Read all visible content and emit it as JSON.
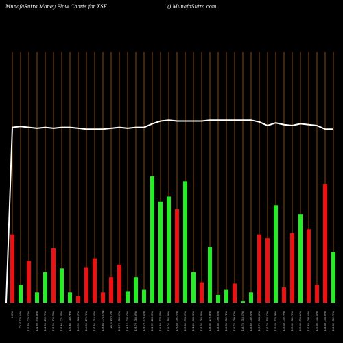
{
  "header": {
    "left_text": "MunafaSutra  Money Flow  Charts for XSF",
    "right_text": "() MunafaSutra.com"
  },
  "colors": {
    "background": "#000000",
    "gridline": "#b35a00",
    "up_bar": "#22ee22",
    "down_bar": "#ee1111",
    "price_line": "#ffffff"
  },
  "chart_data": {
    "type": "bar",
    "title": "MunafaSutra  Money Flow  Charts for XSF",
    "xlabel": "",
    "ylabel": "",
    "ylim": [
      0,
      100
    ],
    "grid": true,
    "series": [
      {
        "values": [
          54,
          14,
          33,
          8,
          24,
          43,
          27,
          8,
          5,
          28,
          35,
          8,
          20,
          30,
          9,
          20,
          10,
          100,
          80,
          84,
          74,
          96,
          24,
          16,
          44,
          6,
          10,
          15,
          1,
          8,
          54,
          51,
          77,
          12,
          55,
          70,
          58,
          14,
          94,
          40
        ],
        "directions": [
          "down",
          "up",
          "down",
          "up",
          "up",
          "down",
          "up",
          "up",
          "down",
          "down",
          "down",
          "down",
          "down",
          "down",
          "up",
          "up",
          "up",
          "up",
          "up",
          "up",
          "down",
          "up",
          "up",
          "down",
          "up",
          "up",
          "up",
          "down",
          "up",
          "up",
          "down",
          "down",
          "up",
          "down",
          "down",
          "up",
          "down",
          "down",
          "down",
          "up"
        ]
      },
      {
        "values": [
          138,
          139,
          138,
          137,
          138,
          137,
          138,
          138,
          137,
          136,
          136,
          136,
          137,
          138,
          137,
          138,
          138,
          142,
          145,
          146,
          145,
          145,
          145,
          145,
          146,
          146,
          146,
          146,
          146,
          146,
          144,
          140,
          143,
          141,
          140,
          142,
          141,
          140,
          136,
          136
        ]
      }
    ],
    "x_labels": [
      "0.00%",
      "122.40 573.54%",
      "133.90 1770.43%",
      "131.90 1936.48%",
      "131.90 1152.75%",
      "131.55 1122.75%",
      "129.64 1271.95%",
      "129.64 1780.76%",
      "124.50 1764.95%",
      "124.50 1175.76%",
      "129.88 1714.80%",
      "124.84 1774.07%",
      "124.57 1570.3%",
      "126.70 1785.05%",
      "128.17 1730.27%",
      "128.79 1788.69%",
      "129.79 1575.45%",
      "132.32 1180.98%",
      "134.80 1170.70%",
      "134.28 1185.98%",
      "129.40 1791.74%",
      "133.08 1790.85%",
      "122.08 1706.90%",
      "135.04 1286.38%",
      "138.08 1179.38%",
      "134.04 1793.84%",
      "134.38 1582.72%",
      "134.74 1790.97%",
      "134.76 1716.57%",
      "134.80 1702.81%",
      "133.79 1700.68%",
      "133.79 1152.47%",
      "133.40 1178.76%",
      "133.40 1752.79%",
      "133.40 1761.70%",
      "133.40 1736.44%",
      "133.63 1790.24%",
      "133.06 1741.80%",
      "138.00 1755.09%",
      "134.00 1782.70%"
    ],
    "annotation": "%"
  }
}
